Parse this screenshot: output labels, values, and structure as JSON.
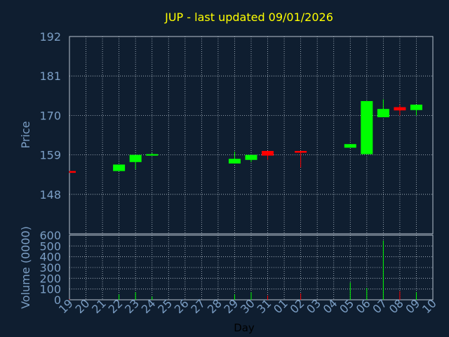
{
  "chart_data": [
    {
      "type": "candlestick",
      "title": "JUP - last updated 09/01/2026",
      "xlabel": "",
      "ylabel": "Price",
      "ylim": [
        137,
        192
      ],
      "yticks": [
        148,
        159,
        170,
        181,
        192
      ],
      "grid": true,
      "categories": [
        "19",
        "20",
        "21",
        "22",
        "23",
        "24",
        "25",
        "26",
        "27",
        "28",
        "29",
        "30",
        "31",
        "01",
        "02",
        "03",
        "04",
        "05",
        "06",
        "07",
        "08",
        "09",
        "10"
      ],
      "candles": [
        {
          "day": "19",
          "open": 154.5,
          "close": 154.0,
          "high": 154.5,
          "low": 154.0
        },
        {
          "day": "22",
          "open": 154.5,
          "close": 156.3,
          "high": 156.3,
          "low": 154.5
        },
        {
          "day": "23",
          "open": 157.0,
          "close": 159.0,
          "high": 159.0,
          "low": 155.0
        },
        {
          "day": "24",
          "open": 158.8,
          "close": 159.2,
          "high": 159.5,
          "low": 158.8
        },
        {
          "day": "29",
          "open": 156.6,
          "close": 157.9,
          "high": 159.9,
          "low": 156.6
        },
        {
          "day": "30",
          "open": 157.6,
          "close": 159.0,
          "high": 159.0,
          "low": 157.0
        },
        {
          "day": "31",
          "open": 160.1,
          "close": 158.8,
          "high": 160.1,
          "low": 157.6
        },
        {
          "day": "02",
          "open": 160.1,
          "close": 159.6,
          "high": 160.1,
          "low": 155.5
        },
        {
          "day": "05",
          "open": 161.0,
          "close": 162.0,
          "high": 162.0,
          "low": 161.0
        },
        {
          "day": "06",
          "open": 159.2,
          "close": 174.0,
          "high": 174.0,
          "low": 159.2
        },
        {
          "day": "07",
          "open": 169.5,
          "close": 171.8,
          "high": 174.5,
          "low": 169.5
        },
        {
          "day": "08",
          "open": 172.3,
          "close": 171.4,
          "high": 173.0,
          "low": 170.0
        },
        {
          "day": "09",
          "open": 171.5,
          "close": 173.0,
          "high": 173.0,
          "low": 170.0
        }
      ],
      "colors": {
        "up": "#00ff00",
        "down": "#ff0000",
        "background": "#0f1e30",
        "grid": "#b8c4d0",
        "axis_text": "#7b9ec4",
        "title": "#ffff00"
      }
    },
    {
      "type": "bar",
      "xlabel": "Day",
      "ylabel": "Volume (0000)",
      "ylim": [
        0,
        600
      ],
      "yticks": [
        0,
        100,
        200,
        300,
        400,
        500,
        600
      ],
      "grid": true,
      "categories": [
        "19",
        "20",
        "21",
        "22",
        "23",
        "24",
        "25",
        "26",
        "27",
        "28",
        "29",
        "30",
        "31",
        "01",
        "02",
        "03",
        "04",
        "05",
        "06",
        "07",
        "08",
        "09",
        "10"
      ],
      "bars": [
        {
          "day": "19",
          "value": 5,
          "color": "#ff0000"
        },
        {
          "day": "22",
          "value": 50,
          "color": "#00ff00"
        },
        {
          "day": "23",
          "value": 70,
          "color": "#00ff00"
        },
        {
          "day": "24",
          "value": 30,
          "color": "#00ff00"
        },
        {
          "day": "29",
          "value": 50,
          "color": "#00ff00"
        },
        {
          "day": "30",
          "value": 70,
          "color": "#00ff00"
        },
        {
          "day": "31",
          "value": 40,
          "color": "#ff0000"
        },
        {
          "day": "02",
          "value": 60,
          "color": "#ff0000"
        },
        {
          "day": "05",
          "value": 160,
          "color": "#00ff00"
        },
        {
          "day": "06",
          "value": 110,
          "color": "#00ff00"
        },
        {
          "day": "07",
          "value": 550,
          "color": "#00ff00"
        },
        {
          "day": "08",
          "value": 80,
          "color": "#ff0000"
        },
        {
          "day": "09",
          "value": 70,
          "color": "#00ff00"
        }
      ]
    }
  ]
}
